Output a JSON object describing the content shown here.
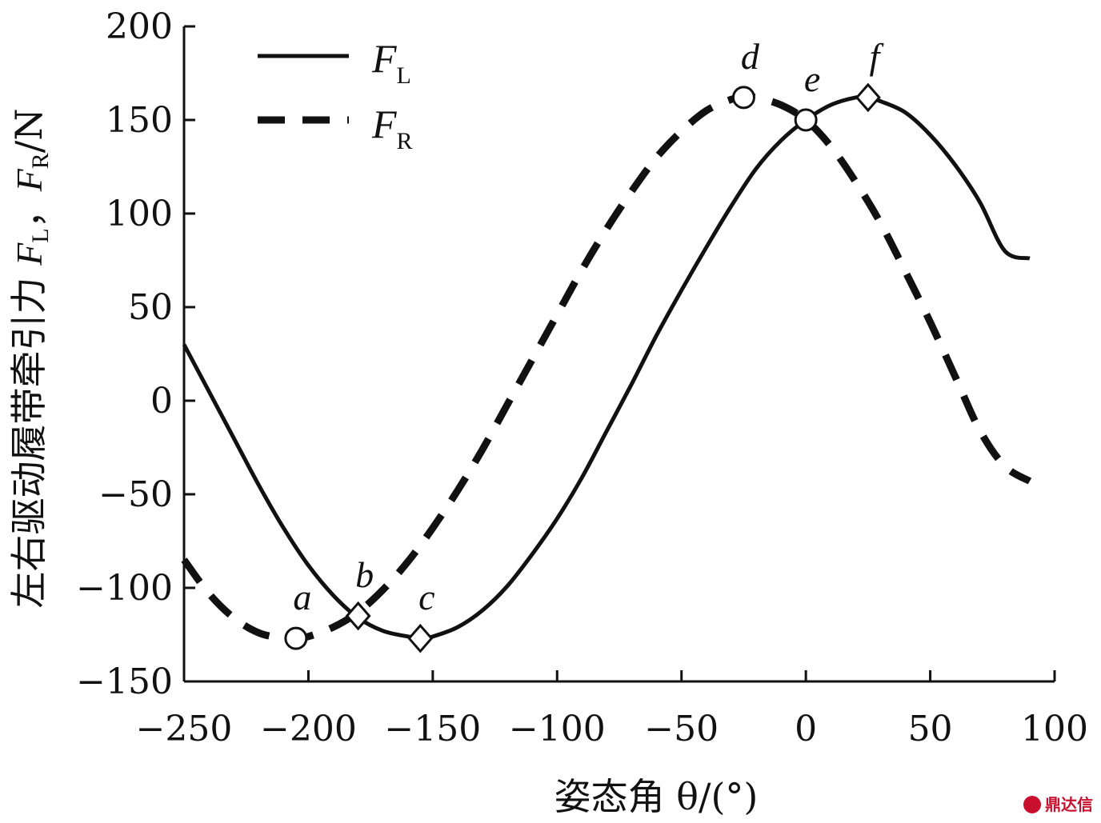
{
  "chart_data": {
    "type": "line",
    "xlabel": "姿态角 θ/(°)",
    "ylabel_parts": {
      "prefix": "左右驱动履带牵引力 ",
      "f1": "F",
      "s1": "L",
      "sep": "，",
      "f2": "F",
      "s2": "R",
      "unit": "/N"
    },
    "xlim": [
      -250,
      100
    ],
    "ylim": [
      -150,
      200
    ],
    "xticks": [
      -250,
      -200,
      -150,
      -100,
      -50,
      0,
      50,
      100
    ],
    "yticks": [
      -150,
      -100,
      -50,
      0,
      50,
      100,
      150,
      200
    ],
    "grid": false,
    "legend_position": "top-left",
    "series": [
      {
        "name": "F",
        "sub": "L",
        "style": "solid",
        "x": [
          -250,
          -240,
          -230,
          -220,
          -210,
          -200,
          -190,
          -180,
          -170,
          -160,
          -155,
          -150,
          -140,
          -130,
          -120,
          -110,
          -100,
          -90,
          -80,
          -70,
          -60,
          -50,
          -40,
          -30,
          -20,
          -10,
          0,
          10,
          20,
          25,
          30,
          40,
          50,
          60,
          70,
          80,
          90
        ],
        "y": [
          30,
          5,
          -20,
          -45,
          -68,
          -88,
          -104,
          -116,
          -123,
          -126,
          -127,
          -126,
          -121,
          -112,
          -99,
          -82,
          -63,
          -41,
          -16,
          9,
          35,
          59,
          82,
          104,
          124,
          139,
          150,
          158,
          162,
          162,
          160,
          154,
          142,
          126,
          106,
          80,
          76
        ]
      },
      {
        "name": "F",
        "sub": "R",
        "style": "dashed",
        "x": [
          -250,
          -240,
          -230,
          -220,
          -210,
          -205,
          -200,
          -190,
          -180,
          -170,
          -160,
          -150,
          -140,
          -130,
          -120,
          -110,
          -100,
          -90,
          -80,
          -70,
          -60,
          -50,
          -40,
          -30,
          -25,
          -20,
          -10,
          0,
          10,
          20,
          30,
          40,
          50,
          60,
          70,
          80,
          90
        ],
        "y": [
          -85,
          -103,
          -116,
          -124,
          -127,
          -127,
          -126,
          -121,
          -113,
          -101,
          -86,
          -68,
          -48,
          -26,
          -2,
          22,
          46,
          70,
          92,
          112,
          130,
          144,
          155,
          161,
          162,
          162,
          158,
          150,
          136,
          117,
          95,
          69,
          42,
          13,
          -16,
          -35,
          -43
        ]
      }
    ],
    "points": [
      {
        "label": "a",
        "x": -205,
        "y": -127,
        "marker": "circle"
      },
      {
        "label": "b",
        "x": -180,
        "y": -115,
        "marker": "diamond"
      },
      {
        "label": "c",
        "x": -155,
        "y": -127,
        "marker": "diamond"
      },
      {
        "label": "d",
        "x": -25,
        "y": 162,
        "marker": "circle"
      },
      {
        "label": "e",
        "x": 0,
        "y": 150,
        "marker": "circle"
      },
      {
        "label": "f",
        "x": 25,
        "y": 162,
        "marker": "diamond"
      }
    ]
  },
  "watermark": "鼎达信"
}
